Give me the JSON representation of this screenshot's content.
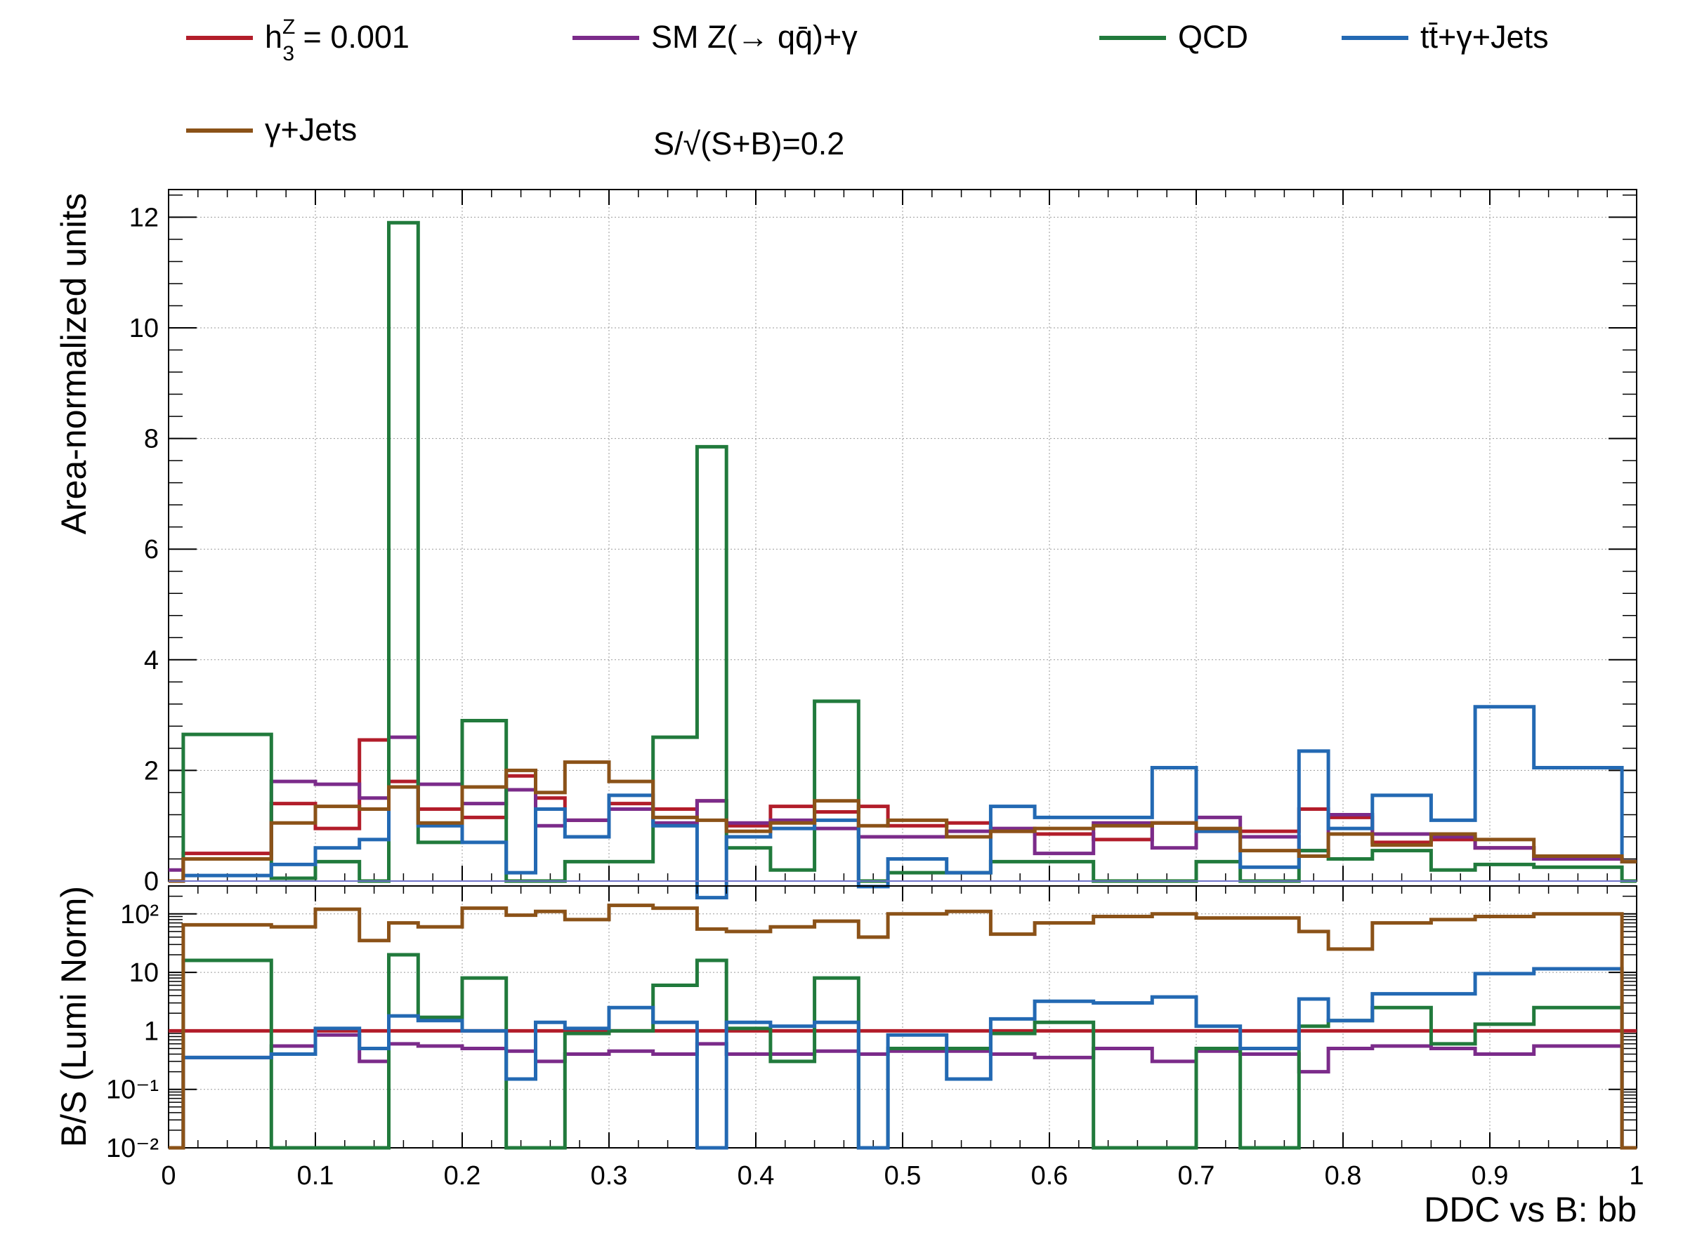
{
  "chart_data": [
    {
      "type": "line",
      "panel": "top",
      "ylabel": "Area-normalized units",
      "xlim": [
        0,
        1
      ],
      "ylim": [
        0,
        12.5
      ],
      "grid": true,
      "x_ticks": [
        "0",
        "0.1",
        "0.2",
        "0.3",
        "0.4",
        "0.5",
        "0.6",
        "0.7",
        "0.8",
        "0.9",
        "1"
      ],
      "y_ticks": [
        "0",
        "2",
        "4",
        "6",
        "8",
        "10",
        "12"
      ],
      "y_tick_values": [
        0,
        2,
        4,
        6,
        8,
        10,
        12
      ],
      "legend_position": "top",
      "annotation": "S/√(S+B)=0.2",
      "bin_edges": [
        0,
        0.01,
        0.07,
        0.1,
        0.13,
        0.15,
        0.17,
        0.2,
        0.23,
        0.25,
        0.27,
        0.3,
        0.33,
        0.36,
        0.38,
        0.41,
        0.44,
        0.47,
        0.49,
        0.53,
        0.56,
        0.59,
        0.63,
        0.67,
        0.7,
        0.73,
        0.77,
        0.79,
        0.82,
        0.86,
        0.89,
        0.93,
        0.99,
        1.0
      ],
      "series": [
        {
          "name": "h₃ᵻ = 0.001",
          "color": "#b21d2a",
          "values": [
            0,
            0.5,
            1.4,
            0.95,
            2.55,
            1.8,
            1.3,
            1.15,
            1.9,
            1.5,
            1.1,
            1.4,
            1.3,
            1.45,
            1.0,
            1.35,
            1.25,
            1.35,
            1.0,
            1.05,
            0.9,
            0.85,
            0.75,
            1.05,
            0.9,
            0.9,
            1.3,
            1.15,
            0.7,
            0.75,
            0.6,
            0.4,
            0.35
          ]
        },
        {
          "name": "SM Z(→ qq̄)+γ",
          "color": "#7b2b8a",
          "values": [
            0.2,
            0.4,
            1.8,
            1.75,
            1.5,
            2.6,
            1.75,
            1.4,
            1.65,
            1.0,
            1.1,
            1.3,
            1.05,
            1.45,
            1.05,
            1.1,
            0.95,
            0.8,
            0.8,
            0.9,
            0.95,
            0.5,
            1.05,
            0.6,
            1.15,
            0.8,
            0.55,
            1.2,
            0.85,
            0.8,
            0.6,
            0.4,
            0.35
          ]
        },
        {
          "name": "QCD",
          "color": "#217a3c",
          "values": [
            0,
            2.65,
            0.05,
            0.35,
            0.0,
            11.9,
            0.7,
            2.9,
            0.0,
            0.0,
            0.35,
            0.35,
            2.6,
            7.85,
            0.6,
            0.2,
            3.25,
            0.0,
            0.15,
            0.15,
            0.35,
            0.35,
            0.0,
            0.0,
            0.35,
            0.0,
            0.55,
            0.4,
            0.55,
            0.2,
            0.3,
            0.25,
            0.0
          ]
        },
        {
          "name": "tt̄+γ+Jets",
          "color": "#2369b3",
          "values": [
            0,
            0.1,
            0.3,
            0.6,
            0.75,
            1.7,
            1.0,
            0.7,
            0.15,
            1.3,
            0.8,
            1.55,
            1.0,
            -0.3,
            0.8,
            0.95,
            1.1,
            -0.1,
            0.4,
            0.15,
            1.35,
            1.15,
            1.15,
            2.05,
            0.9,
            0.25,
            2.35,
            0.95,
            1.55,
            1.1,
            3.15,
            2.05,
            0.35
          ]
        },
        {
          "name": "γ+Jets",
          "color": "#8b5218",
          "values": [
            0,
            0.4,
            1.05,
            1.35,
            1.3,
            1.7,
            1.05,
            1.7,
            2.0,
            1.6,
            2.15,
            1.8,
            1.15,
            1.1,
            0.9,
            1.05,
            1.45,
            1.0,
            1.1,
            0.8,
            0.9,
            0.95,
            1.0,
            1.05,
            0.95,
            0.55,
            0.45,
            0.85,
            0.65,
            0.85,
            0.75,
            0.45,
            0.35
          ]
        }
      ]
    },
    {
      "type": "line",
      "panel": "ratio",
      "xlabel": "DDC vs B: bb",
      "ylabel": "B/S (Lumi Norm)",
      "xlim": [
        0,
        1
      ],
      "ylim": [
        0.01,
        300
      ],
      "y_scale": "log",
      "grid": true,
      "x_ticks": [
        "0",
        "0.1",
        "0.2",
        "0.3",
        "0.4",
        "0.5",
        "0.6",
        "0.7",
        "0.8",
        "0.9",
        "1"
      ],
      "y_ticks": [
        "10⁻²",
        "10⁻¹",
        "1",
        "10",
        "10²"
      ],
      "y_tick_values": [
        0.01,
        0.1,
        1,
        10,
        100
      ],
      "bin_edges": [
        0,
        0.01,
        0.07,
        0.1,
        0.13,
        0.15,
        0.17,
        0.2,
        0.23,
        0.25,
        0.27,
        0.3,
        0.33,
        0.36,
        0.38,
        0.41,
        0.44,
        0.47,
        0.49,
        0.53,
        0.56,
        0.59,
        0.63,
        0.67,
        0.7,
        0.73,
        0.77,
        0.79,
        0.82,
        0.86,
        0.89,
        0.93,
        0.99,
        1.0
      ],
      "series": [
        {
          "name": "h₃ᵻ = 0.001",
          "color": "#b21d2a",
          "values": [
            1,
            1,
            1,
            1,
            1,
            1,
            1,
            1,
            1,
            1,
            1,
            1,
            1,
            1,
            1,
            1,
            1,
            1,
            1,
            1,
            1,
            1,
            1,
            1,
            1,
            1,
            1,
            1,
            1,
            1,
            1,
            1,
            1
          ]
        },
        {
          "name": "SM Z(→ qq̄)+γ",
          "color": "#7b2b8a",
          "values": [
            0.005,
            0.35,
            0.55,
            0.85,
            0.3,
            0.6,
            0.55,
            0.5,
            0.45,
            0.3,
            0.4,
            0.45,
            0.4,
            0.6,
            0.4,
            0.4,
            0.45,
            0.4,
            0.45,
            0.45,
            0.4,
            0.35,
            0.5,
            0.3,
            0.45,
            0.4,
            0.2,
            0.5,
            0.55,
            0.5,
            0.4,
            0.55,
            0.005
          ]
        },
        {
          "name": "QCD",
          "color": "#217a3c",
          "values": [
            0.005,
            16,
            0.01,
            0.01,
            0.01,
            20,
            1.7,
            8,
            0.01,
            0.01,
            0.9,
            1.0,
            6,
            16,
            1.1,
            0.3,
            8,
            0.01,
            0.5,
            0.5,
            0.9,
            1.4,
            0.01,
            0.01,
            0.5,
            0.01,
            1.2,
            1.5,
            2.5,
            0.6,
            1.3,
            2.5,
            0.005
          ]
        },
        {
          "name": "tt̄+γ+Jets",
          "color": "#2369b3",
          "values": [
            0.005,
            0.35,
            0.4,
            1.1,
            0.5,
            1.8,
            1.5,
            1.0,
            0.15,
            1.4,
            1.1,
            2.5,
            1.4,
            0.01,
            1.4,
            1.2,
            1.4,
            0.01,
            0.85,
            0.15,
            1.6,
            3.2,
            3.0,
            3.8,
            1.2,
            0.5,
            3.5,
            1.5,
            4.3,
            4.3,
            9.5,
            11.5,
            0.005
          ]
        },
        {
          "name": "γ+Jets",
          "color": "#8b5218",
          "values": [
            0.005,
            65,
            60,
            120,
            35,
            70,
            60,
            125,
            95,
            110,
            80,
            140,
            125,
            55,
            50,
            60,
            75,
            40,
            100,
            110,
            45,
            70,
            90,
            100,
            85,
            85,
            50,
            25,
            70,
            80,
            90,
            100,
            0.005
          ]
        }
      ]
    }
  ],
  "legend": {
    "entries": [
      {
        "label_main": "h",
        "label_sub": "3",
        "label_sup": "Z",
        "label_rest": " = 0.001",
        "color": "#b21d2a"
      },
      {
        "label": "SM Z(→ qq̄)+γ",
        "color": "#7b2b8a"
      },
      {
        "label": "QCD",
        "color": "#217a3c"
      },
      {
        "label": "tt̄+γ+Jets",
        "color": "#2369b3"
      },
      {
        "label": "γ+Jets",
        "color": "#8b5218"
      }
    ],
    "annotation": "S/√(S+B)=0.2"
  }
}
